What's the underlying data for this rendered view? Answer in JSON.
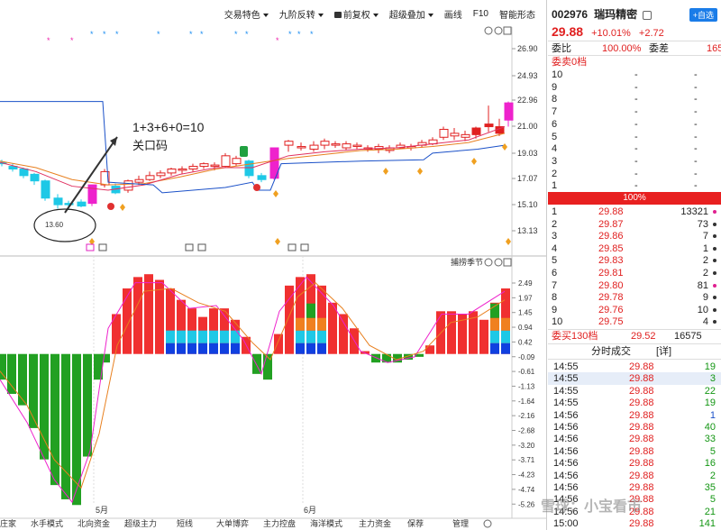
{
  "toolbar": {
    "items": [
      "交易特色",
      "九阶反转",
      "前复权",
      "超级叠加",
      "画线",
      "F10",
      "智能形态"
    ]
  },
  "main_chart": {
    "price_axis": [
      "26.90",
      "24.93",
      "22.96",
      "21.00",
      "19.03",
      "17.07",
      "15.10",
      "13.13"
    ],
    "annotation_line1": "1+3+6+0=10",
    "annotation_line2": "关口码",
    "low_label": "13.60"
  },
  "sub_chart": {
    "title": "捕捞季节",
    "axis": [
      "2.49",
      "1.97",
      "1.45",
      "0.94",
      "0.42",
      "-0.09",
      "-0.61",
      "-1.13",
      "-1.64",
      "-2.16",
      "-2.68",
      "-3.20",
      "-3.71",
      "-4.23",
      "-4.74",
      "-5.26"
    ],
    "months": [
      "5月",
      "6月"
    ]
  },
  "bottom_tabs": [
    "水手模式",
    "北向资金",
    "超级主力",
    "短线",
    "大单博弈",
    "主力控盘",
    "海洋模式",
    "主力资金",
    "保荐",
    "管理"
  ],
  "bottom_left": "庄家",
  "quote": {
    "code": "002976",
    "name": "瑞玛精密",
    "add_label": "+自选",
    "price": "29.88",
    "change_pct": "+10.01%",
    "change": "+2.72",
    "weibi_label": "委比",
    "weibi": "100.00%",
    "weicha_label": "委差",
    "weicha": "165",
    "sell_header": "委卖0档",
    "sell_levels": [
      "10",
      "9",
      "8",
      "7",
      "6",
      "5",
      "4",
      "3",
      "2",
      "1"
    ],
    "sell_price": "-",
    "sell_vol": "-",
    "pct_bar": "100%",
    "buy_levels": [
      {
        "lvl": "1",
        "price": "29.88",
        "vol": "13321"
      },
      {
        "lvl": "2",
        "price": "29.87",
        "vol": "73"
      },
      {
        "lvl": "3",
        "price": "29.86",
        "vol": "7"
      },
      {
        "lvl": "4",
        "price": "29.85",
        "vol": "1"
      },
      {
        "lvl": "5",
        "price": "29.83",
        "vol": "2"
      },
      {
        "lvl": "6",
        "price": "29.81",
        "vol": "2"
      },
      {
        "lvl": "7",
        "price": "29.80",
        "vol": "81"
      },
      {
        "lvl": "8",
        "price": "29.78",
        "vol": "9"
      },
      {
        "lvl": "9",
        "price": "29.76",
        "vol": "10"
      },
      {
        "lvl": "10",
        "price": "29.75",
        "vol": "4"
      }
    ],
    "buy_summary_label": "委买130档",
    "buy_summary_price": "29.52",
    "buy_summary_vol": "16575",
    "ticks_title": "分时成交",
    "ticks_detail": "[详]",
    "ticks": [
      {
        "t": "14:55",
        "p": "29.88",
        "v": "19"
      },
      {
        "t": "14:55",
        "p": "29.88",
        "v": "3"
      },
      {
        "t": "14:55",
        "p": "29.88",
        "v": "22"
      },
      {
        "t": "14:55",
        "p": "29.88",
        "v": "19"
      },
      {
        "t": "14:56",
        "p": "29.88",
        "v": "1"
      },
      {
        "t": "14:56",
        "p": "29.88",
        "v": "40"
      },
      {
        "t": "14:56",
        "p": "29.88",
        "v": "33"
      },
      {
        "t": "14:56",
        "p": "29.88",
        "v": "5"
      },
      {
        "t": "14:56",
        "p": "29.88",
        "v": "16"
      },
      {
        "t": "14:56",
        "p": "29.88",
        "v": "2"
      },
      {
        "t": "14:56",
        "p": "29.88",
        "v": "35"
      },
      {
        "t": "14:56",
        "p": "29.88",
        "v": "5"
      },
      {
        "t": "14:56",
        "p": "29.88",
        "v": "21"
      },
      {
        "t": "15:00",
        "p": "29.88",
        "v": "141"
      }
    ]
  },
  "watermark": "雪球：小宝看市",
  "colors": {
    "up": "#e02020",
    "down": "#139613",
    "cyan": "#1ec8e6",
    "magenta": "#ee22cc",
    "blue": "#1a50c8",
    "orange": "#e88020",
    "bar_red": "#f03030",
    "bar_green": "#22a022"
  }
}
